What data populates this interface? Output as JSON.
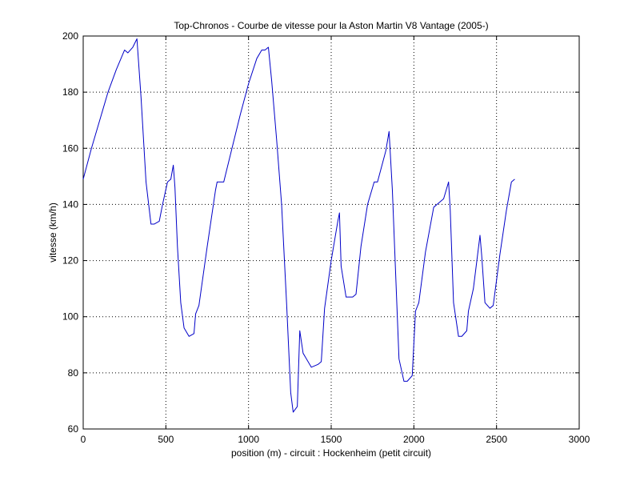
{
  "chart_data": {
    "type": "line",
    "title": "Top-Chronos - Courbe de vitesse pour la Aston Martin V8 Vantage (2005-)",
    "xlabel": "position (m) - circuit : Hockenheim (petit circuit)",
    "ylabel": "vitesse (km/h)",
    "xlim": [
      0,
      3000
    ],
    "ylim": [
      60,
      200
    ],
    "xticks": [
      0,
      500,
      1000,
      1500,
      2000,
      2500,
      3000
    ],
    "yticks": [
      60,
      80,
      100,
      120,
      140,
      160,
      180,
      200
    ],
    "grid": true,
    "series_color": "#0000c8",
    "series": [
      {
        "x": [
          0,
          50,
          100,
          150,
          200,
          250,
          270,
          300,
          325,
          350,
          380,
          410,
          430,
          460,
          480,
          510,
          530,
          545,
          555,
          570,
          590,
          610,
          640,
          670,
          680,
          700,
          750,
          800,
          810,
          850,
          900,
          950,
          1000,
          1050,
          1080,
          1100,
          1120,
          1140,
          1170,
          1200,
          1230,
          1255,
          1270,
          1295,
          1310,
          1330,
          1380,
          1420,
          1440,
          1460,
          1500,
          1540,
          1550,
          1560,
          1590,
          1630,
          1650,
          1680,
          1720,
          1760,
          1780,
          1830,
          1850,
          1870,
          1890,
          1910,
          1940,
          1960,
          1990,
          2010,
          2030,
          2070,
          2120,
          2180,
          2210,
          2220,
          2240,
          2270,
          2290,
          2320,
          2330,
          2360,
          2400,
          2410,
          2430,
          2460,
          2480,
          2520,
          2560,
          2590,
          2610
        ],
        "y": [
          149,
          160,
          170,
          180,
          188,
          195,
          194,
          196,
          199,
          178,
          148,
          133,
          133,
          134,
          140,
          148,
          149,
          154,
          146,
          125,
          105,
          96,
          93,
          94,
          101,
          104,
          125,
          145,
          148,
          148,
          160,
          172,
          183,
          192,
          195,
          195,
          196,
          184,
          163,
          140,
          105,
          73,
          66,
          68,
          95,
          87,
          82,
          83,
          84,
          103,
          120,
          134,
          137,
          118,
          107,
          107,
          108,
          125,
          140,
          148,
          148,
          159,
          166,
          145,
          115,
          85,
          77,
          77,
          79,
          102,
          105,
          123,
          139,
          142,
          148,
          138,
          105,
          93,
          93,
          95,
          102,
          110,
          129,
          122,
          105,
          103,
          104,
          122,
          138,
          148,
          149
        ]
      }
    ]
  }
}
